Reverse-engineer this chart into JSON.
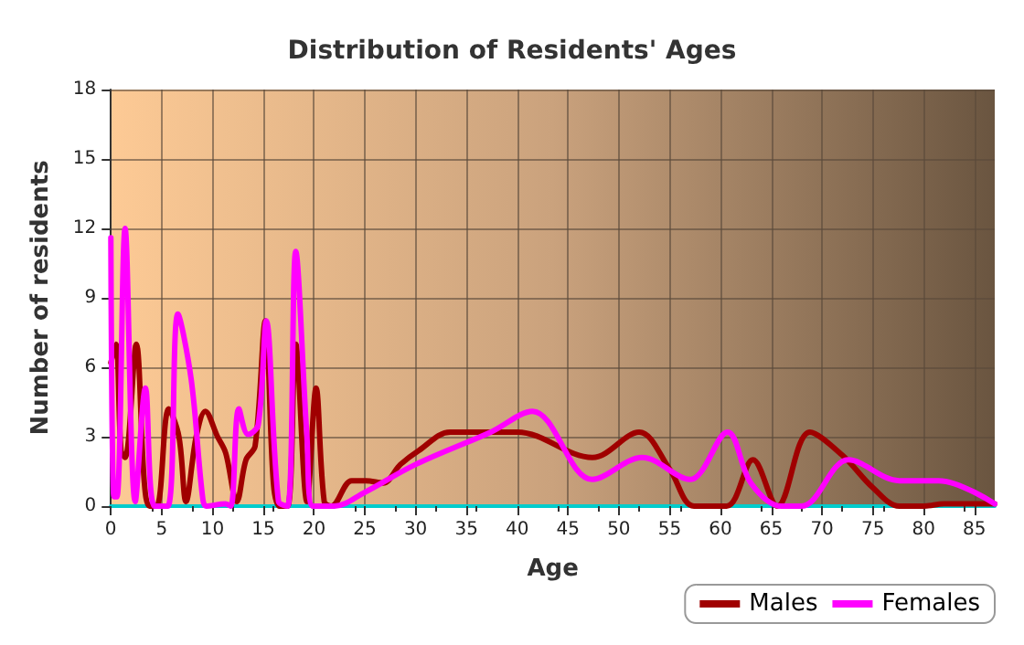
{
  "chart_data": {
    "type": "line",
    "title": "Distribution of Residents' Ages",
    "xlabel": "Age",
    "ylabel": "Number of residents",
    "xlim": [
      0,
      87
    ],
    "xticks": [
      0,
      5,
      10,
      15,
      20,
      25,
      30,
      35,
      40,
      45,
      50,
      55,
      60,
      65,
      70,
      75,
      80,
      85
    ],
    "ylim": [
      0,
      18
    ],
    "yticks": [
      0,
      3,
      6,
      9,
      12,
      15,
      18
    ],
    "grid": true,
    "legend": "bottom right",
    "marker": "none",
    "line_style": "solid",
    "series": [
      {
        "name": "Males",
        "color": "#a00000",
        "x": [
          0,
          0.5,
          1,
          1.4,
          2.5,
          3.3,
          3.8,
          4.5,
          5.7,
          6.7,
          7.4,
          8.4,
          9.3,
          10.5,
          11.3,
          12.4,
          13.3,
          14.2,
          15.2,
          16,
          16.6,
          17.4,
          18.2,
          19.3,
          20.2,
          21,
          21.7,
          23.7,
          25.1,
          26.8,
          28.5,
          30.3,
          33.4,
          40,
          47.4,
          52,
          55,
          57.4,
          60.6,
          63.2,
          65.6,
          68.8,
          72,
          75,
          77.6,
          80,
          82,
          87
        ],
        "values": [
          6.2,
          7,
          2.4,
          2.1,
          7,
          1,
          0,
          0,
          4.2,
          3,
          0.2,
          3,
          4.1,
          3,
          2.3,
          0.2,
          2,
          2.6,
          8,
          1,
          0,
          0,
          7,
          0.2,
          5.1,
          0.2,
          0,
          1.1,
          1.1,
          1,
          1.8,
          2.4,
          3.2,
          3.2,
          2.1,
          3.2,
          1.6,
          0,
          0,
          2,
          0,
          3.2,
          2.2,
          0.8,
          0,
          0,
          0.1,
          0.1
        ]
      },
      {
        "name": "Females",
        "color": "#ff00ff",
        "x": [
          0,
          0.3,
          0.6,
          1.4,
          2.4,
          3.4,
          4.3,
          5.6,
          6.6,
          7.9,
          9,
          9.4,
          11.3,
          11.8,
          12.6,
          13.5,
          14.5,
          15.3,
          16.5,
          17.4,
          18.2,
          19.3,
          19.9,
          22,
          25,
          30,
          37.4,
          41.5,
          47.4,
          52.3,
          57,
          60.7,
          63,
          66,
          68,
          72.6,
          77.6,
          81.5,
          87
        ],
        "values": [
          11.6,
          0.4,
          0.4,
          12,
          0.2,
          5.1,
          0,
          0,
          8.3,
          5.5,
          0.5,
          0,
          0.1,
          0,
          4.2,
          3.1,
          3.5,
          8,
          0.2,
          0,
          11,
          3,
          0,
          0,
          0.6,
          1.8,
          3.2,
          4.1,
          1.15,
          2.1,
          1.15,
          3.2,
          1,
          0,
          0,
          2,
          1.1,
          1.1,
          0.1
        ]
      }
    ]
  }
}
